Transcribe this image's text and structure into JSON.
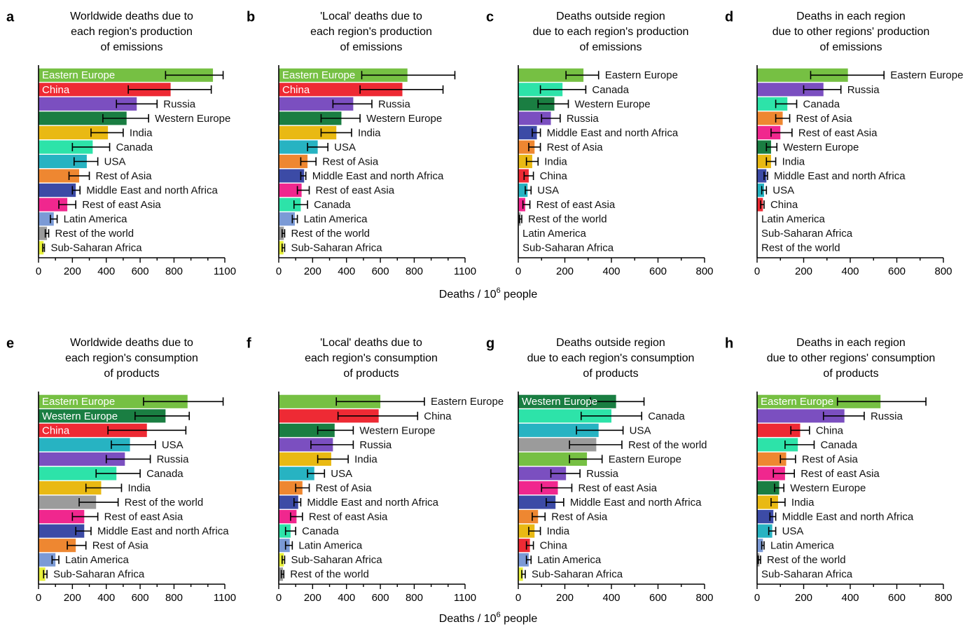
{
  "xlabel_prefix": "Deaths / 10",
  "xlabel_sup": "6",
  "xlabel_suffix": " people",
  "colors": {
    "Eastern Europe": "#76c043",
    "China": "#ee2a34",
    "Russia": "#7b4fc0",
    "Western Europe": "#1a7e42",
    "India": "#e9b913",
    "Canada": "#2de3a9",
    "USA": "#27b3c2",
    "Rest of Asia": "#ee8731",
    "Middle East and north Africa": "#3c4ba6",
    "Rest of east Asia": "#f0278e",
    "Latin America": "#7b9ad6",
    "Rest of the world": "#9b9b9b",
    "Sub-Saharan Africa": "#e7f03b"
  },
  "chart_data": [
    {
      "type": "bar",
      "letter": "a",
      "title": [
        "Worldwide deaths due to",
        "each region's production",
        "of emissions"
      ],
      "xlim": [
        0,
        1100
      ],
      "ticks": [
        0,
        200,
        400,
        600,
        800,
        1100
      ],
      "categories": [
        "Eastern Europe",
        "China",
        "Russia",
        "Western Europe",
        "India",
        "Canada",
        "USA",
        "Rest of Asia",
        "Middle East and north Africa",
        "Rest of east Asia",
        "Latin America",
        "Rest of the world",
        "Sub-Saharan Africa"
      ],
      "values": [
        1030,
        780,
        580,
        520,
        410,
        320,
        285,
        240,
        220,
        170,
        90,
        50,
        30
      ],
      "err_low": [
        750,
        530,
        460,
        380,
        310,
        200,
        210,
        180,
        200,
        120,
        70,
        40,
        25
      ],
      "err_high": [
        1090,
        1020,
        700,
        650,
        500,
        420,
        350,
        300,
        245,
        220,
        110,
        60,
        35
      ],
      "inside": [
        true,
        true,
        false,
        false,
        false,
        false,
        false,
        false,
        false,
        false,
        false,
        false,
        false
      ]
    },
    {
      "type": "bar",
      "letter": "b",
      "title": [
        "'Local' deaths due to",
        "each region's production",
        "of emissions"
      ],
      "xlim": [
        0,
        1100
      ],
      "ticks": [
        0,
        200,
        400,
        600,
        800,
        1100
      ],
      "categories": [
        "Eastern Europe",
        "China",
        "Russia",
        "Western Europe",
        "India",
        "USA",
        "Rest of Asia",
        "Middle East and north Africa",
        "Rest of east Asia",
        "Canada",
        "Latin America",
        "Rest of the world",
        "Sub-Saharan Africa"
      ],
      "values": [
        760,
        730,
        440,
        370,
        340,
        230,
        170,
        150,
        135,
        130,
        95,
        30,
        28
      ],
      "err_low": [
        490,
        480,
        320,
        250,
        250,
        170,
        130,
        130,
        110,
        90,
        80,
        20,
        20
      ],
      "err_high": [
        1040,
        970,
        550,
        480,
        430,
        290,
        220,
        160,
        180,
        170,
        110,
        35,
        35
      ],
      "inside": [
        true,
        true,
        false,
        false,
        false,
        false,
        false,
        false,
        false,
        false,
        false,
        false,
        false
      ]
    },
    {
      "type": "bar",
      "letter": "c",
      "title": [
        "Deaths outside region",
        "due to each region's production",
        "of emissions"
      ],
      "xlim": [
        0,
        800
      ],
      "ticks": [
        0,
        200,
        400,
        600,
        800
      ],
      "categories": [
        "Eastern Europe",
        "Canada",
        "Western Europe",
        "Russia",
        "Middle East and north Africa",
        "Rest of Asia",
        "India",
        "China",
        "USA",
        "Rest of east Asia",
        "Rest of the world",
        "Latin America",
        "Sub-Saharan Africa"
      ],
      "values": [
        280,
        190,
        155,
        140,
        80,
        70,
        60,
        45,
        40,
        30,
        10,
        0,
        0
      ],
      "err_low": [
        205,
        95,
        85,
        100,
        60,
        45,
        35,
        25,
        30,
        20,
        5,
        0,
        0
      ],
      "err_high": [
        345,
        290,
        215,
        180,
        95,
        95,
        85,
        65,
        55,
        50,
        15,
        0,
        0
      ],
      "inside": [
        false,
        false,
        false,
        false,
        false,
        false,
        false,
        false,
        false,
        false,
        false,
        false,
        false
      ]
    },
    {
      "type": "bar",
      "letter": "d",
      "title": [
        "Deaths in each region",
        "due to other regions' production",
        "of emissions"
      ],
      "xlim": [
        0,
        800
      ],
      "ticks": [
        0,
        200,
        400,
        600,
        800
      ],
      "categories": [
        "Eastern Europe",
        "Russia",
        "Canada",
        "Rest of Asia",
        "Rest of east Asia",
        "Western Europe",
        "India",
        "Middle East and north Africa",
        "USA",
        "China",
        "Latin America",
        "Sub-Saharan Africa",
        "Rest of the world"
      ],
      "values": [
        390,
        285,
        130,
        110,
        100,
        60,
        60,
        40,
        30,
        25,
        0,
        0,
        0
      ],
      "err_low": [
        230,
        200,
        80,
        80,
        60,
        40,
        40,
        30,
        20,
        15,
        0,
        0,
        0
      ],
      "err_high": [
        545,
        360,
        170,
        140,
        150,
        85,
        80,
        45,
        40,
        30,
        0,
        0,
        0
      ],
      "inside": [
        false,
        false,
        false,
        false,
        false,
        false,
        false,
        false,
        false,
        false,
        false,
        false,
        false
      ]
    },
    {
      "type": "bar",
      "letter": "e",
      "title": [
        "Worldwide deaths due to",
        "each region's consumption",
        "of products"
      ],
      "xlim": [
        0,
        1100
      ],
      "ticks": [
        0,
        200,
        400,
        600,
        800,
        1100
      ],
      "categories": [
        "Eastern Europe",
        "Western Europe",
        "China",
        "USA",
        "Russia",
        "Canada",
        "India",
        "Rest of the world",
        "Rest of east Asia",
        "Middle East and north Africa",
        "Rest of Asia",
        "Latin America",
        "Sub-Saharan Africa"
      ],
      "values": [
        880,
        750,
        640,
        540,
        510,
        460,
        370,
        340,
        270,
        270,
        220,
        100,
        40
      ],
      "err_low": [
        620,
        570,
        410,
        430,
        400,
        340,
        280,
        240,
        200,
        220,
        170,
        80,
        30
      ],
      "err_high": [
        1090,
        890,
        870,
        690,
        660,
        600,
        490,
        470,
        350,
        310,
        280,
        120,
        50
      ],
      "inside": [
        true,
        true,
        true,
        false,
        false,
        false,
        false,
        false,
        false,
        false,
        false,
        false,
        false
      ]
    },
    {
      "type": "bar",
      "letter": "f",
      "title": [
        "'Local' deaths due to",
        "each region's consumption",
        "of products"
      ],
      "xlim": [
        0,
        1100
      ],
      "ticks": [
        0,
        200,
        400,
        600,
        800,
        1100
      ],
      "categories": [
        "Eastern Europe",
        "China",
        "Western Europe",
        "Russia",
        "India",
        "USA",
        "Rest of Asia",
        "Middle East and north Africa",
        "Rest of east Asia",
        "Canada",
        "Latin America",
        "Sub-Saharan Africa",
        "Rest of the world"
      ],
      "values": [
        600,
        590,
        330,
        320,
        310,
        210,
        140,
        115,
        105,
        70,
        65,
        30,
        25
      ],
      "err_low": [
        340,
        350,
        230,
        190,
        230,
        170,
        100,
        90,
        70,
        40,
        40,
        20,
        15
      ],
      "err_high": [
        860,
        820,
        440,
        440,
        410,
        270,
        180,
        130,
        140,
        100,
        80,
        35,
        30
      ],
      "inside": [
        false,
        false,
        false,
        false,
        false,
        false,
        false,
        false,
        false,
        false,
        false,
        false,
        false
      ]
    },
    {
      "type": "bar",
      "letter": "g",
      "title": [
        "Deaths outside region",
        "due to each region's consumption",
        "of products"
      ],
      "xlim": [
        0,
        800
      ],
      "ticks": [
        0,
        200,
        400,
        600,
        800
      ],
      "categories": [
        "Western Europe",
        "Canada",
        "USA",
        "Rest of the world",
        "Eastern Europe",
        "Russia",
        "Rest of east Asia",
        "Middle East and north Africa",
        "Rest of Asia",
        "India",
        "China",
        "Latin America",
        "Sub-Saharan Africa"
      ],
      "values": [
        420,
        400,
        345,
        335,
        295,
        205,
        170,
        160,
        85,
        70,
        50,
        45,
        20
      ],
      "err_low": [
        310,
        270,
        250,
        220,
        220,
        140,
        100,
        120,
        60,
        45,
        35,
        35,
        15
      ],
      "err_high": [
        540,
        530,
        450,
        445,
        360,
        265,
        230,
        195,
        115,
        95,
        65,
        55,
        30
      ],
      "inside": [
        true,
        false,
        false,
        false,
        false,
        false,
        false,
        false,
        false,
        false,
        false,
        false,
        false
      ]
    },
    {
      "type": "bar",
      "letter": "h",
      "title": [
        "Deaths in each region",
        "due to other regions' consumption",
        "of products"
      ],
      "xlim": [
        0,
        800
      ],
      "ticks": [
        0,
        200,
        400,
        600,
        800
      ],
      "categories": [
        "Eastern Europe",
        "Russia",
        "China",
        "Canada",
        "Rest of Asia",
        "Rest of east Asia",
        "Western Europe",
        "India",
        "Middle East and north Africa",
        "USA",
        "Latin America",
        "Rest of the world",
        "Sub-Saharan Africa"
      ],
      "values": [
        530,
        375,
        185,
        175,
        125,
        120,
        95,
        90,
        70,
        65,
        25,
        10,
        0
      ],
      "err_low": [
        345,
        285,
        145,
        120,
        100,
        70,
        75,
        60,
        55,
        50,
        20,
        5,
        0
      ],
      "err_high": [
        725,
        460,
        225,
        245,
        165,
        160,
        115,
        120,
        80,
        80,
        30,
        15,
        0
      ],
      "inside": [
        true,
        false,
        false,
        false,
        false,
        false,
        false,
        false,
        false,
        false,
        false,
        false,
        false
      ]
    }
  ]
}
